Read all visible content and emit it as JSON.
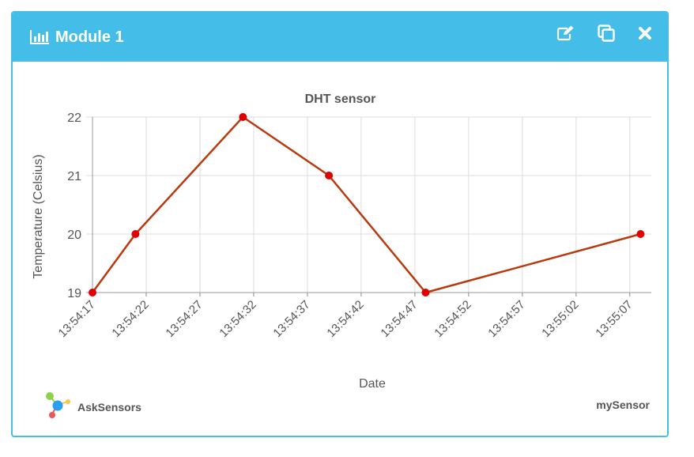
{
  "module": {
    "title": "Module 1",
    "title_icon": "bar-chart-icon",
    "actions": [
      {
        "name": "edit-button",
        "icon": "edit-icon"
      },
      {
        "name": "duplicate-button",
        "icon": "copy-icon"
      },
      {
        "name": "close-button",
        "icon": "close-icon"
      }
    ],
    "header_color": "#44bde8"
  },
  "chart_data": {
    "type": "line",
    "title": "DHT sensor",
    "xlabel": "Date",
    "ylabel": "Temperature (Celsius)",
    "x_ticks": [
      "13:54:17",
      "13:54:22",
      "13:54:27",
      "13:54:32",
      "13:54:37",
      "13:54:42",
      "13:54:47",
      "13:54:52",
      "13:54:57",
      "13:55:02",
      "13:55:07"
    ],
    "y_ticks": [
      19,
      20,
      21,
      22
    ],
    "xlim": [
      "13:54:17",
      "13:55:09"
    ],
    "ylim": [
      19,
      22
    ],
    "grid": true,
    "line_color": "#b83a0e",
    "point_color": "#e00000",
    "series": [
      {
        "x": [
          "13:54:17",
          "13:54:21",
          "13:54:31",
          "13:54:39",
          "13:54:48",
          "13:55:08"
        ],
        "y": [
          19,
          20,
          22,
          21,
          19,
          20
        ]
      }
    ]
  },
  "footer": {
    "brand": "AskSensors",
    "brand_icon": "asksensors-logo-icon",
    "sensor": "mySensor"
  }
}
